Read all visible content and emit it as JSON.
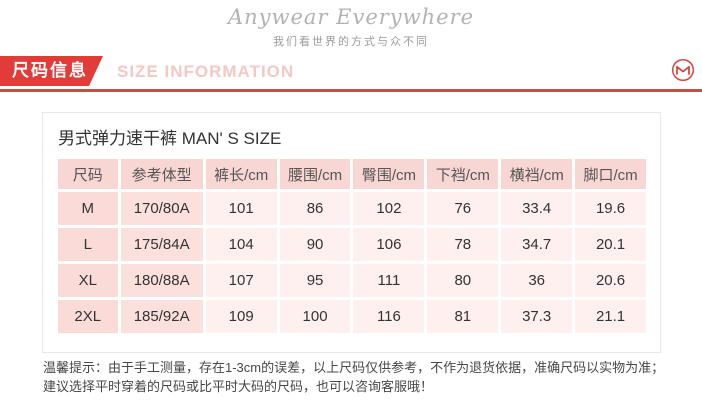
{
  "brand": {
    "title": "Anywear Everywhere",
    "subtitle": "我们看世界的方式与众不同"
  },
  "banner": {
    "label_cn": "尺码信息",
    "label_en": "SIZE INFORMATION",
    "accent_color": "#e23c38",
    "line_color": "#c94c45",
    "logo_icon": "m-monogram-icon"
  },
  "panel": {
    "title": "男式弹力速干裤 MAN' S SIZE"
  },
  "size_table": {
    "headers": [
      "尺码",
      "参考体型",
      "裤长/cm",
      "腰围/cm",
      "臀围/cm",
      "下裆/cm",
      "横裆/cm",
      "脚口/cm"
    ],
    "rows": [
      [
        "M",
        "170/80A",
        "101",
        "86",
        "102",
        "76",
        "33.4",
        "19.6"
      ],
      [
        "L",
        "175/84A",
        "104",
        "90",
        "106",
        "78",
        "34.7",
        "20.1"
      ],
      [
        "XL",
        "180/88A",
        "107",
        "95",
        "111",
        "80",
        "36",
        "20.6"
      ],
      [
        "2XL",
        "185/92A",
        "109",
        "100",
        "116",
        "81",
        "37.3",
        "21.1"
      ]
    ],
    "header_bg": "#f8d6d3",
    "size_col_bg": "#fadbd8",
    "body_cell_bg": "#fdf0ee"
  },
  "notice": {
    "line1": "温馨提示：由于手工测量，存在1-3cm的误差，以上尺码仅供参考，不作为退货依据，准确尺码以实物为准；",
    "line2": "建议选择平时穿着的尺码或比平时大码的尺码，也可以咨询客服哦！"
  }
}
